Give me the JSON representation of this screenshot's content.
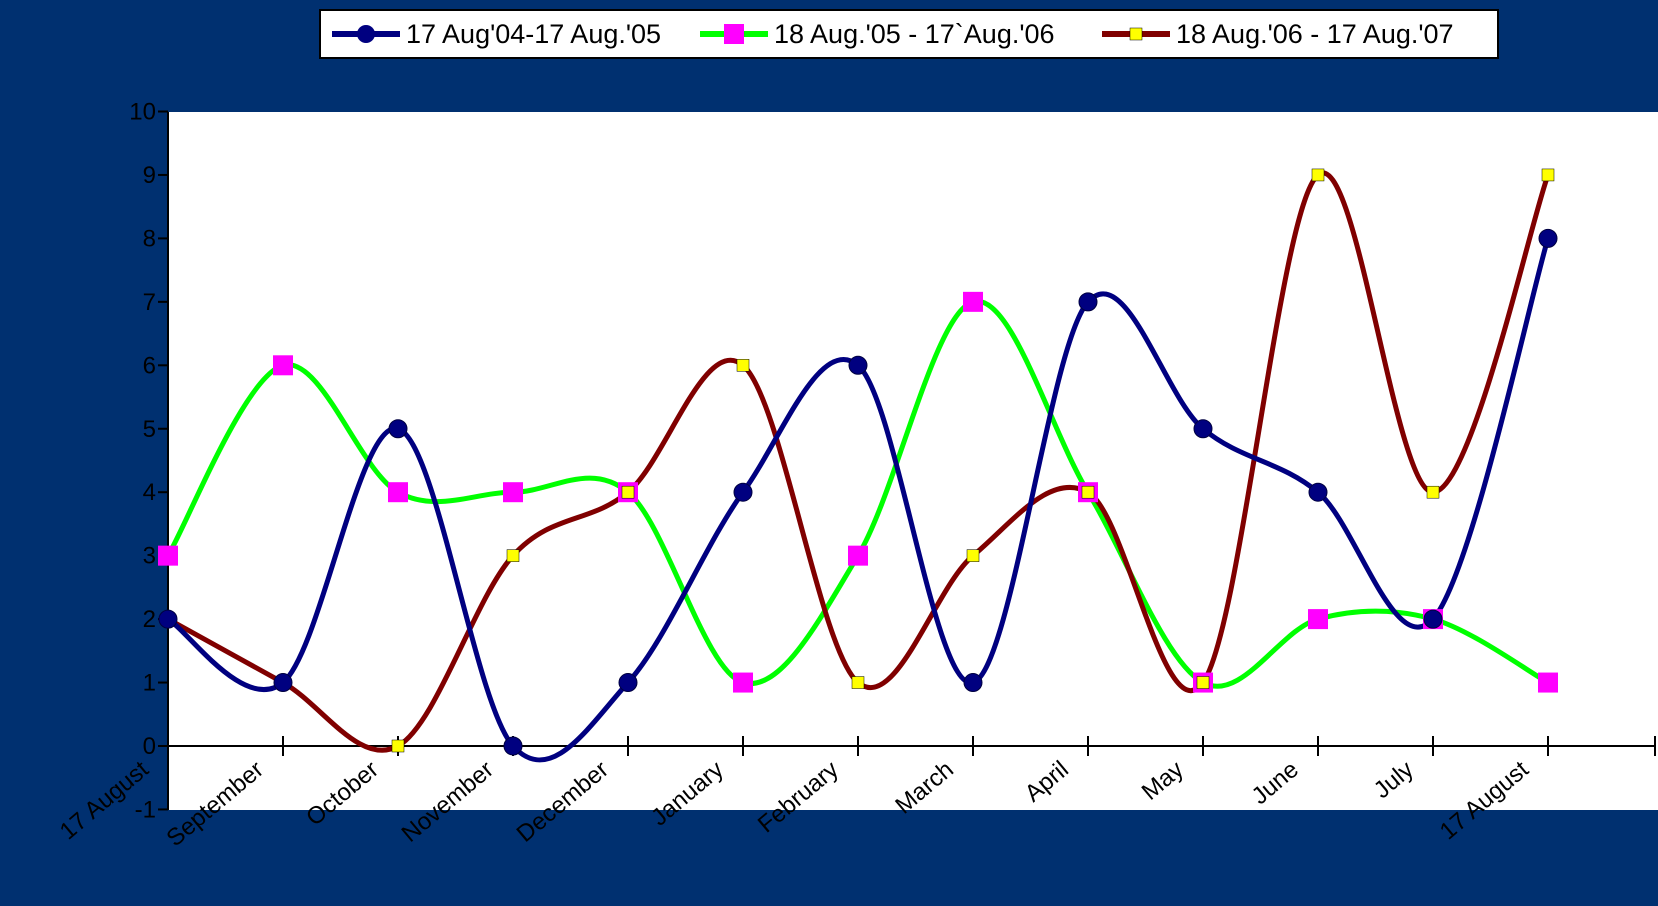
{
  "chart_data": {
    "type": "line",
    "title": "",
    "xlabel": "",
    "ylabel": "",
    "categories": [
      "17 August",
      "September",
      "October",
      "November",
      "December",
      "January",
      "February",
      "March",
      "April",
      "May",
      "June",
      "July",
      "17 August"
    ],
    "ylim": [
      -1,
      10
    ],
    "yticks": [
      -1,
      0,
      1,
      2,
      3,
      4,
      5,
      6,
      7,
      8,
      9,
      10
    ],
    "grid": false,
    "legend_position": "top",
    "background_color": "#003070",
    "plot_background_color": "#ffffff",
    "smooth": true,
    "series": [
      {
        "name": "17 Aug'04-17 Aug.'05",
        "color": "#000080",
        "marker": "circle",
        "marker_color": "#000080",
        "values": [
          2,
          1,
          5,
          0,
          1,
          4,
          6,
          1,
          7,
          5,
          4,
          2,
          8
        ]
      },
      {
        "name": "18 Aug.'05 - 17`Aug.'06",
        "color": "#00ff00",
        "marker": "square",
        "marker_color": "#ff00ff",
        "values": [
          3,
          6,
          4,
          4,
          4,
          1,
          3,
          7,
          4,
          1,
          2,
          2,
          1
        ]
      },
      {
        "name": "18 Aug.'06 - 17 Aug.'07",
        "color": "#800000",
        "marker": "small-square",
        "marker_color": "#ffff00",
        "values": [
          2,
          1,
          0,
          3,
          4,
          6,
          1,
          3,
          4,
          1,
          9,
          4,
          9
        ]
      }
    ]
  }
}
